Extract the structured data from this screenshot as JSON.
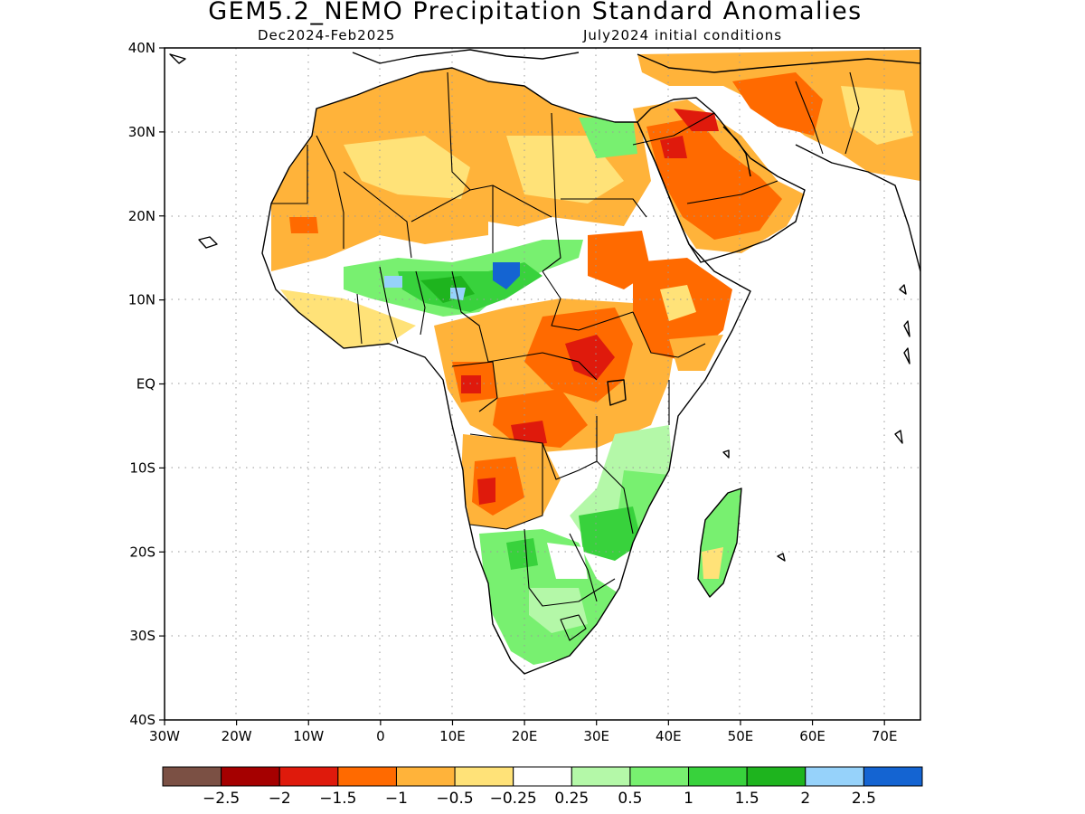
{
  "header": {
    "title": "GEM5.2_NEMO Precipitation Standard Anomalies",
    "period": "Dec2024-Feb2025",
    "init": "July2024 initial conditions"
  },
  "axes": {
    "lat_labels": [
      "40N",
      "30N",
      "20N",
      "10N",
      "EQ",
      "10S",
      "20S",
      "30S",
      "40S"
    ],
    "lat_values": [
      40,
      30,
      20,
      10,
      0,
      -10,
      -20,
      -30,
      -40
    ],
    "lon_labels": [
      "30W",
      "20W",
      "10W",
      "0",
      "10E",
      "20E",
      "30E",
      "40E",
      "50E",
      "60E",
      "70E"
    ],
    "lon_values": [
      -30,
      -20,
      -10,
      0,
      10,
      20,
      30,
      40,
      50,
      60,
      70
    ],
    "lon_range": [
      -30,
      75
    ],
    "lat_range": [
      -40,
      40
    ],
    "grid": true
  },
  "colorbar": {
    "colors": [
      "#7b5044",
      "#a50000",
      "#df1a0c",
      "#ff6a00",
      "#ffb33a",
      "#ffe278",
      "#ffffff",
      "#b4f8a8",
      "#78f070",
      "#38d23c",
      "#1eb41e",
      "#96d2fa",
      "#1464d2"
    ],
    "labels": [
      "-2.5",
      "-2",
      "-1.5",
      "-1",
      "-0.5",
      "-0.25",
      "0.25",
      "0.5",
      "1",
      "1.5",
      "2",
      "2.5"
    ]
  }
}
